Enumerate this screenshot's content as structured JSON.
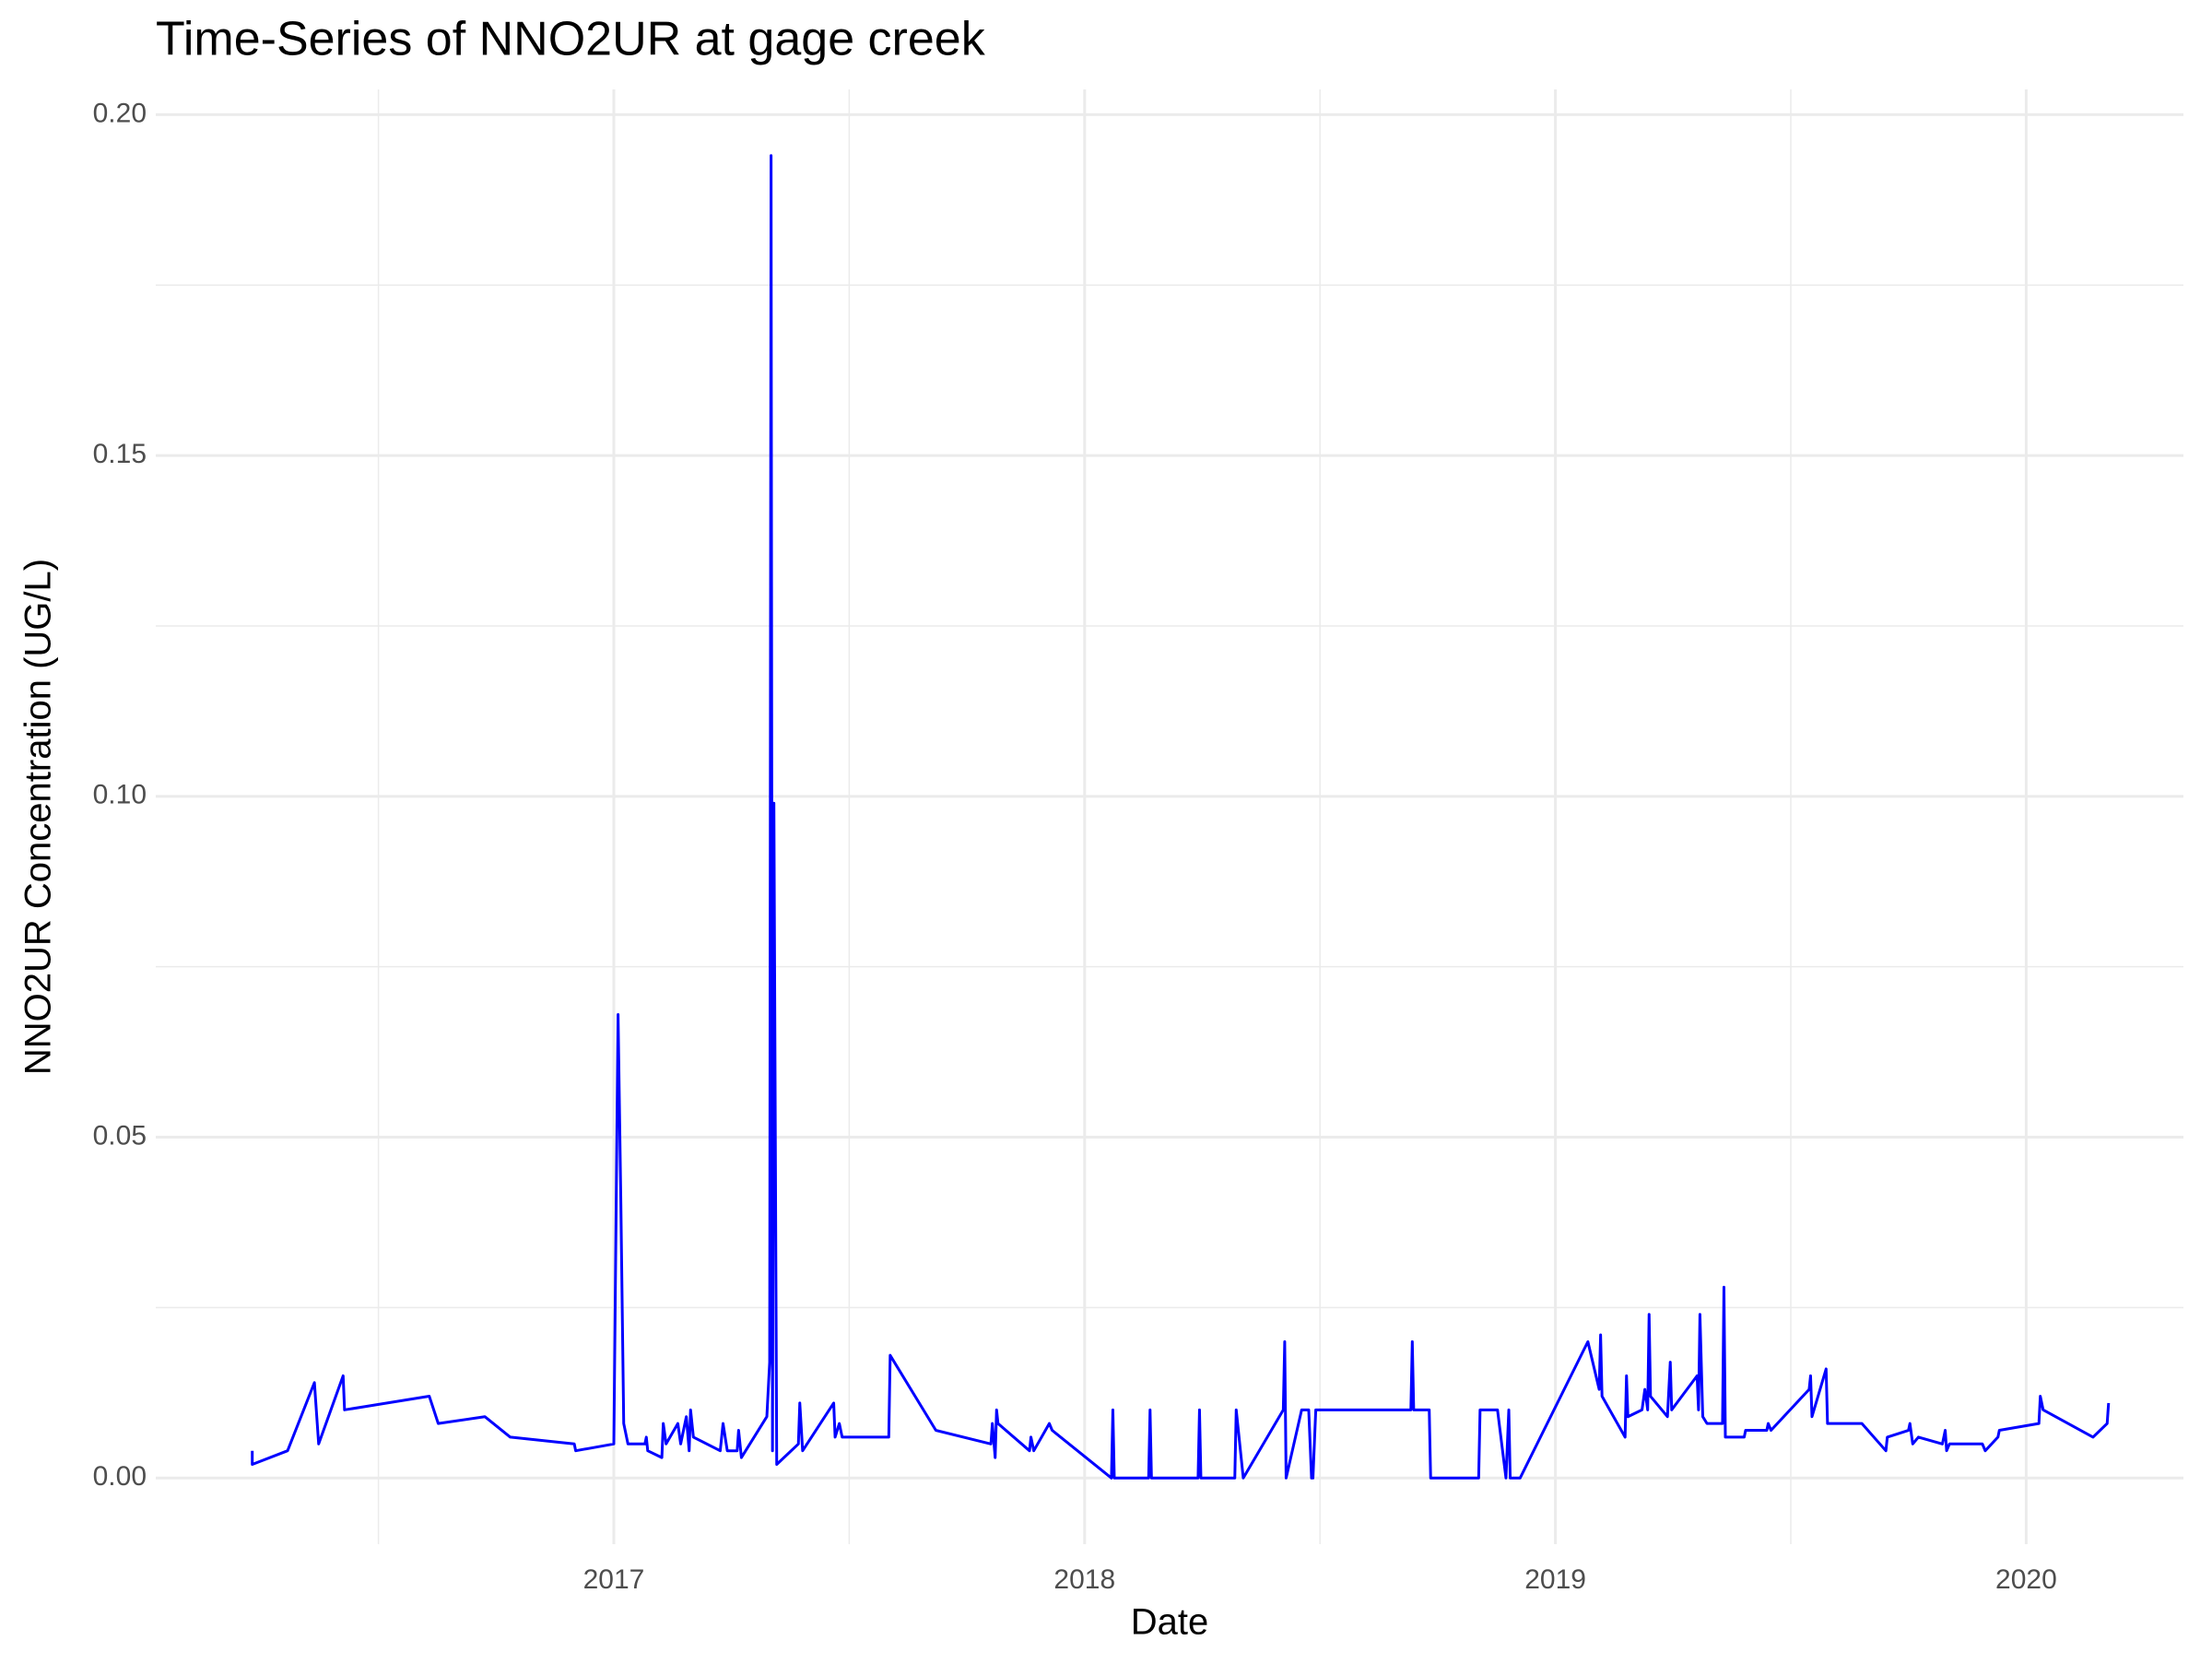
{
  "chart_data": {
    "type": "line",
    "title": "Time-Series of NNO2UR at gage creek",
    "x_label": "Date",
    "y_label": "NNO2UR Concentration (UG/L)",
    "color": "#0000ff",
    "grid": true,
    "xlim": [
      2016.027,
      2020.334
    ],
    "ylim": [
      -0.0097,
      0.2037
    ],
    "xticks": [
      2017,
      2018,
      2019,
      2020
    ],
    "minor_xticks": [
      2016.5,
      2017.5,
      2018.5,
      2019.5
    ],
    "yticks": [
      {
        "value": 0,
        "label": "0.00"
      },
      {
        "value": 0.05,
        "label": "0.05"
      },
      {
        "value": 0.1,
        "label": "0.10"
      },
      {
        "value": 0.15,
        "label": "0.15"
      },
      {
        "value": 0.2,
        "label": "0.20"
      }
    ],
    "minor_yticks": [
      0.025,
      0.075,
      0.125,
      0.175
    ],
    "x": [
      2016.232,
      2016.232,
      2016.307,
      2016.364,
      2016.373,
      2016.425,
      2016.428,
      2016.608,
      2016.627,
      2016.726,
      2016.78,
      2016.916,
      2016.919,
      2017.0,
      2017.009,
      2017.015,
      2017.021,
      2017.03,
      2017.066,
      2017.069,
      2017.072,
      2017.102,
      2017.105,
      2017.111,
      2017.136,
      2017.142,
      2017.154,
      2017.16,
      2017.163,
      2017.169,
      2017.226,
      2017.232,
      2017.241,
      2017.262,
      2017.265,
      2017.271,
      2017.325,
      2017.331,
      2017.334,
      2017.337,
      2017.34,
      2017.346,
      2017.392,
      2017.395,
      2017.401,
      2017.467,
      2017.47,
      2017.479,
      2017.485,
      2017.584,
      2017.587,
      2017.684,
      2017.801,
      2017.804,
      2017.81,
      2017.813,
      2017.816,
      2017.883,
      2017.886,
      2017.892,
      2017.925,
      2017.931,
      2018.057,
      2018.06,
      2018.063,
      2018.136,
      2018.139,
      2018.142,
      2018.241,
      2018.244,
      2018.247,
      2018.319,
      2018.322,
      2018.337,
      2018.422,
      2018.425,
      2018.428,
      2018.461,
      2018.476,
      2018.482,
      2018.485,
      2018.491,
      2018.693,
      2018.696,
      2018.699,
      2018.732,
      2018.735,
      2018.837,
      2018.84,
      2018.877,
      2018.895,
      2018.901,
      2018.904,
      2018.925,
      2019.069,
      2019.093,
      2019.096,
      2019.099,
      2019.148,
      2019.151,
      2019.154,
      2019.184,
      2019.19,
      2019.196,
      2019.199,
      2019.202,
      2019.238,
      2019.244,
      2019.247,
      2019.301,
      2019.304,
      2019.307,
      2019.313,
      2019.322,
      2019.355,
      2019.358,
      2019.361,
      2019.401,
      2019.404,
      2019.449,
      2019.452,
      2019.458,
      2019.539,
      2019.542,
      2019.545,
      2019.575,
      2019.578,
      2019.651,
      2019.702,
      2019.705,
      2019.75,
      2019.753,
      2019.759,
      2019.771,
      2019.822,
      2019.828,
      2019.831,
      2019.837,
      2019.907,
      2019.913,
      2019.94,
      2019.943,
      2020.027,
      2020.03,
      2020.036,
      2020.142,
      2020.172,
      2020.175
    ],
    "values": [
      0.004,
      0.002,
      0.004,
      0.014,
      0.005,
      0.015,
      0.01,
      0.012,
      0.008,
      0.009,
      0.006,
      0.005,
      0.004,
      0.005,
      0.068,
      0.04,
      0.008,
      0.005,
      0.005,
      0.006,
      0.004,
      0.003,
      0.008,
      0.005,
      0.008,
      0.005,
      0.009,
      0.004,
      0.01,
      0.006,
      0.004,
      0.008,
      0.004,
      0.004,
      0.007,
      0.003,
      0.009,
      0.017,
      0.194,
      0.004,
      0.099,
      0.002,
      0.005,
      0.011,
      0.004,
      0.011,
      0.006,
      0.008,
      0.006,
      0.006,
      0.018,
      0.007,
      0.005,
      0.008,
      0.003,
      0.01,
      0.008,
      0.004,
      0.006,
      0.004,
      0.008,
      0.007,
      0,
      0.01,
      0,
      0,
      0.01,
      0,
      0,
      0.01,
      0,
      0,
      0.01,
      0,
      0.01,
      0.02,
      0,
      0.01,
      0.01,
      0,
      0,
      0.01,
      0.01,
      0.02,
      0.01,
      0.01,
      0,
      0,
      0.01,
      0.01,
      0,
      0.01,
      0,
      0,
      0.02,
      0.013,
      0.021,
      0.012,
      0.006,
      0.015,
      0.009,
      0.01,
      0.013,
      0.01,
      0.024,
      0.012,
      0.009,
      0.017,
      0.01,
      0.015,
      0.01,
      0.024,
      0.009,
      0.008,
      0.008,
      0.028,
      0.006,
      0.006,
      0.007,
      0.007,
      0.008,
      0.007,
      0.013,
      0.015,
      0.009,
      0.016,
      0.008,
      0.008,
      0.004,
      0.006,
      0.007,
      0.008,
      0.005,
      0.006,
      0.005,
      0.007,
      0.004,
      0.005,
      0.005,
      0.004,
      0.006,
      0.007,
      0.008,
      0.012,
      0.01,
      0.006,
      0.008,
      0.011
    ]
  }
}
